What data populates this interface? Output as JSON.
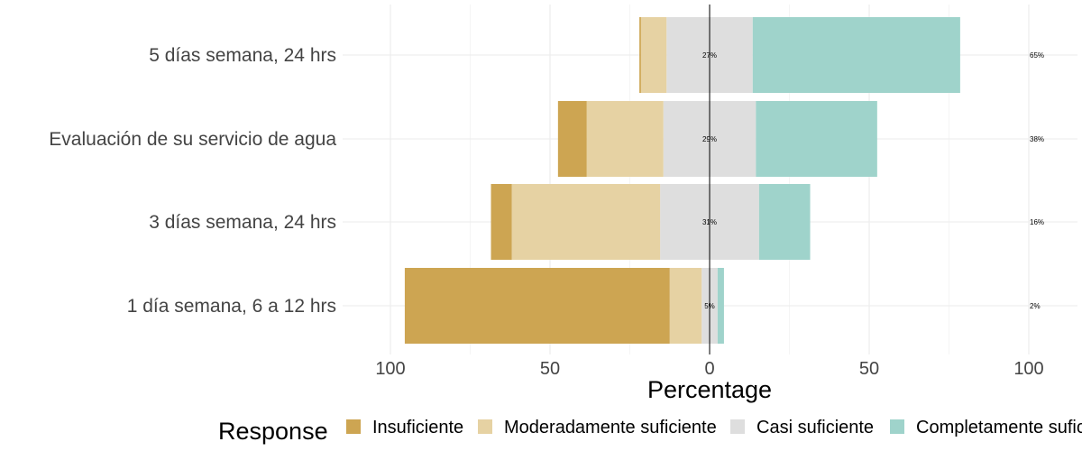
{
  "chart_data": {
    "type": "bar",
    "orientation": "horizontal-diverging",
    "xlabel": "Percentage",
    "xlim": [
      -100,
      100
    ],
    "xticks": [
      -100,
      -50,
      0,
      50,
      100
    ],
    "xtick_labels": [
      "100",
      "50",
      "0",
      "50",
      "100"
    ],
    "categories": [
      "5 días semana, 24 hrs",
      "Evaluación de su servicio de agua",
      "3 días semana, 24 hrs",
      "1 día semana, 6 a 12 hrs"
    ],
    "series": [
      {
        "name": "Insuficiente",
        "color": "#CDA552",
        "values": [
          0.5,
          9,
          6.5,
          83
        ]
      },
      {
        "name": "Moderadamente suficiente",
        "color": "#E6D2A3",
        "values": [
          8,
          24,
          46.5,
          10
        ]
      },
      {
        "name": "Casi suficiente",
        "color": "#DEDEDE",
        "values": [
          27,
          29,
          31,
          5
        ]
      },
      {
        "name": "Completamente suficiente",
        "color": "#9FD3CB",
        "values": [
          65,
          38,
          16,
          2
        ]
      }
    ],
    "center_labels": [
      "27%",
      "29%",
      "31%",
      "5%"
    ],
    "right_labels": [
      "65%",
      "38%",
      "16%",
      "2%"
    ],
    "legend": {
      "title": "Response",
      "position": "bottom",
      "items": [
        "Insuficiente",
        "Moderadamente suficiente",
        "Casi suficiente",
        "Completamente suficiente"
      ]
    },
    "grid": true
  }
}
